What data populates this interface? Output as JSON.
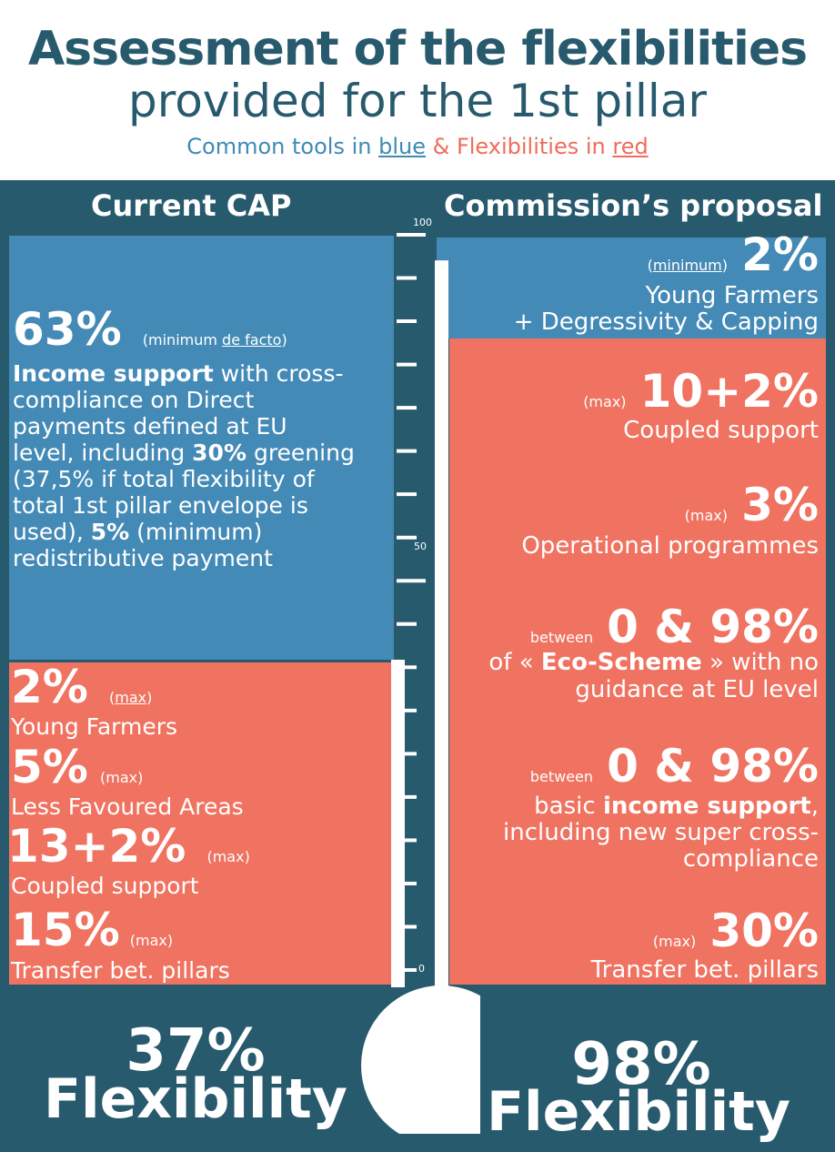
{
  "header": {
    "title": "Assessment of the flexibilities",
    "subtitle": "provided for the 1st pillar",
    "legend_part1": "Common tools in ",
    "legend_blue": "blue",
    "legend_part2": " & Flexibilities in ",
    "legend_red": "red"
  },
  "current_cap": {
    "heading": "Current CAP",
    "income": {
      "pct": "63%",
      "qualifier_pre": "(minimum ",
      "qualifier_u": "de facto",
      "qualifier_post": ")",
      "l1_bold": "Income support",
      "l1_rest": " with cross-",
      "l2": "compliance on Direct",
      "l3": "payments defined at EU",
      "l4_pre": "level, including ",
      "l4_bold": "30%",
      "l4_post": " greening",
      "l5": "(37,5% if total flexibility of",
      "l6": "total 1st pillar envelope is",
      "l7_pre": "used), ",
      "l7_bold": "5%",
      "l7_post": " (minimum)",
      "l8": "redistributive payment"
    },
    "flex": [
      {
        "pct": "2%",
        "qual": "max",
        "label": "Young Farmers"
      },
      {
        "pct": "5%",
        "qual": "(max)",
        "label": "Less Favoured Areas"
      },
      {
        "pct": "13+2%",
        "qual": "(max)",
        "label": "Coupled support"
      },
      {
        "pct": "15%",
        "qual": "(max)",
        "label": "Transfer bet. pillars"
      }
    ],
    "footer_pct": "37%",
    "footer_word": "Flexibility"
  },
  "proposal": {
    "heading": "Commission’s proposal",
    "young": {
      "qual": "minimum",
      "pct": "2%",
      "l1": "Young Farmers",
      "l2": "+ Degressivity & Capping"
    },
    "coupled": {
      "qual": "(max)",
      "pct": "10+2%",
      "label": "Coupled support"
    },
    "operational": {
      "qual": "(max)",
      "pct": "3%",
      "label": "Operational programmes"
    },
    "eco": {
      "qual": "between",
      "pct": "0 & 98%",
      "l1_pre": "of « ",
      "l1_bold": "Eco-Scheme",
      "l1_post": " » with no",
      "l2": "guidance at EU level"
    },
    "basic": {
      "qual": "between",
      "pct": "0 & 98%",
      "l1_pre": "basic ",
      "l1_bold": "income support",
      "l1_post": ",",
      "l2": "including  new super cross-",
      "l3": "compliance"
    },
    "transfer": {
      "qual": "(max)",
      "pct": "30%",
      "label": "Transfer bet. pillars"
    },
    "footer_pct": "98%",
    "footer_word": "Flexibility"
  },
  "gauge": {
    "label_top": "100",
    "label_mid": "50",
    "label_bottom": "0",
    "fill_percent": 98
  },
  "colors": {
    "background": "#285a6e",
    "blue": "#448ab6",
    "red": "#f07260",
    "white": "#ffffff"
  }
}
